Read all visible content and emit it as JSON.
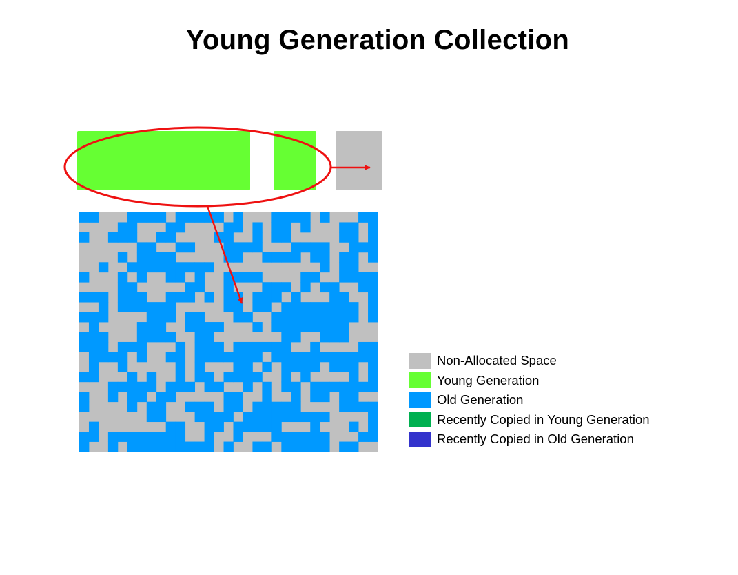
{
  "title": "Young Generation Collection",
  "colors": {
    "non_allocated": "#c0c0c0",
    "young": "#66ff33",
    "old": "#0099ff",
    "recent_young": "#00b050",
    "recent_old": "#3333cc",
    "highlight": "#ee1111"
  },
  "legend": {
    "items": [
      {
        "key": "non_allocated",
        "label": "Non-Allocated Space"
      },
      {
        "key": "young",
        "label": "Young Generation"
      },
      {
        "key": "old",
        "label": "Old Generation"
      },
      {
        "key": "recent_young",
        "label": "Recently Copied in Young Generation"
      },
      {
        "key": "recent_old",
        "label": "Recently Copied in Old Generation"
      }
    ]
  },
  "old_generation_grid": [
    "1100011110111110100011110100011",
    "0000110001100001101011010001101",
    "1001110011000011001011000001101",
    "0000001100110001111000111100111",
    "0000101111000001100111101101101",
    "0010011111111100000000000101100",
    "1000101001101001111000011001111",
    "0000110000011001000111010110011",
    "1110111001110101101110100011001",
    "0010111111000001101101111111101",
    "1110000111011000110011111111101",
    "0100001110011110001011111111000",
    "1110001111001100000001100111000",
    "1110111000101110111111001000011",
    "0111101001101111111011111111111",
    "0100100000101000110101111011101",
    "1100010100101101111001010000101",
    "0001111101110110010101101111111",
    "1001011011000001100100101101100",
    "1000010110011101101111100001111",
    "0000000110001111011111111100001",
    "0100000001100110111110001000101",
    "1101111111100100100011111100011",
    "1001011111111101001101111101100"
  ]
}
